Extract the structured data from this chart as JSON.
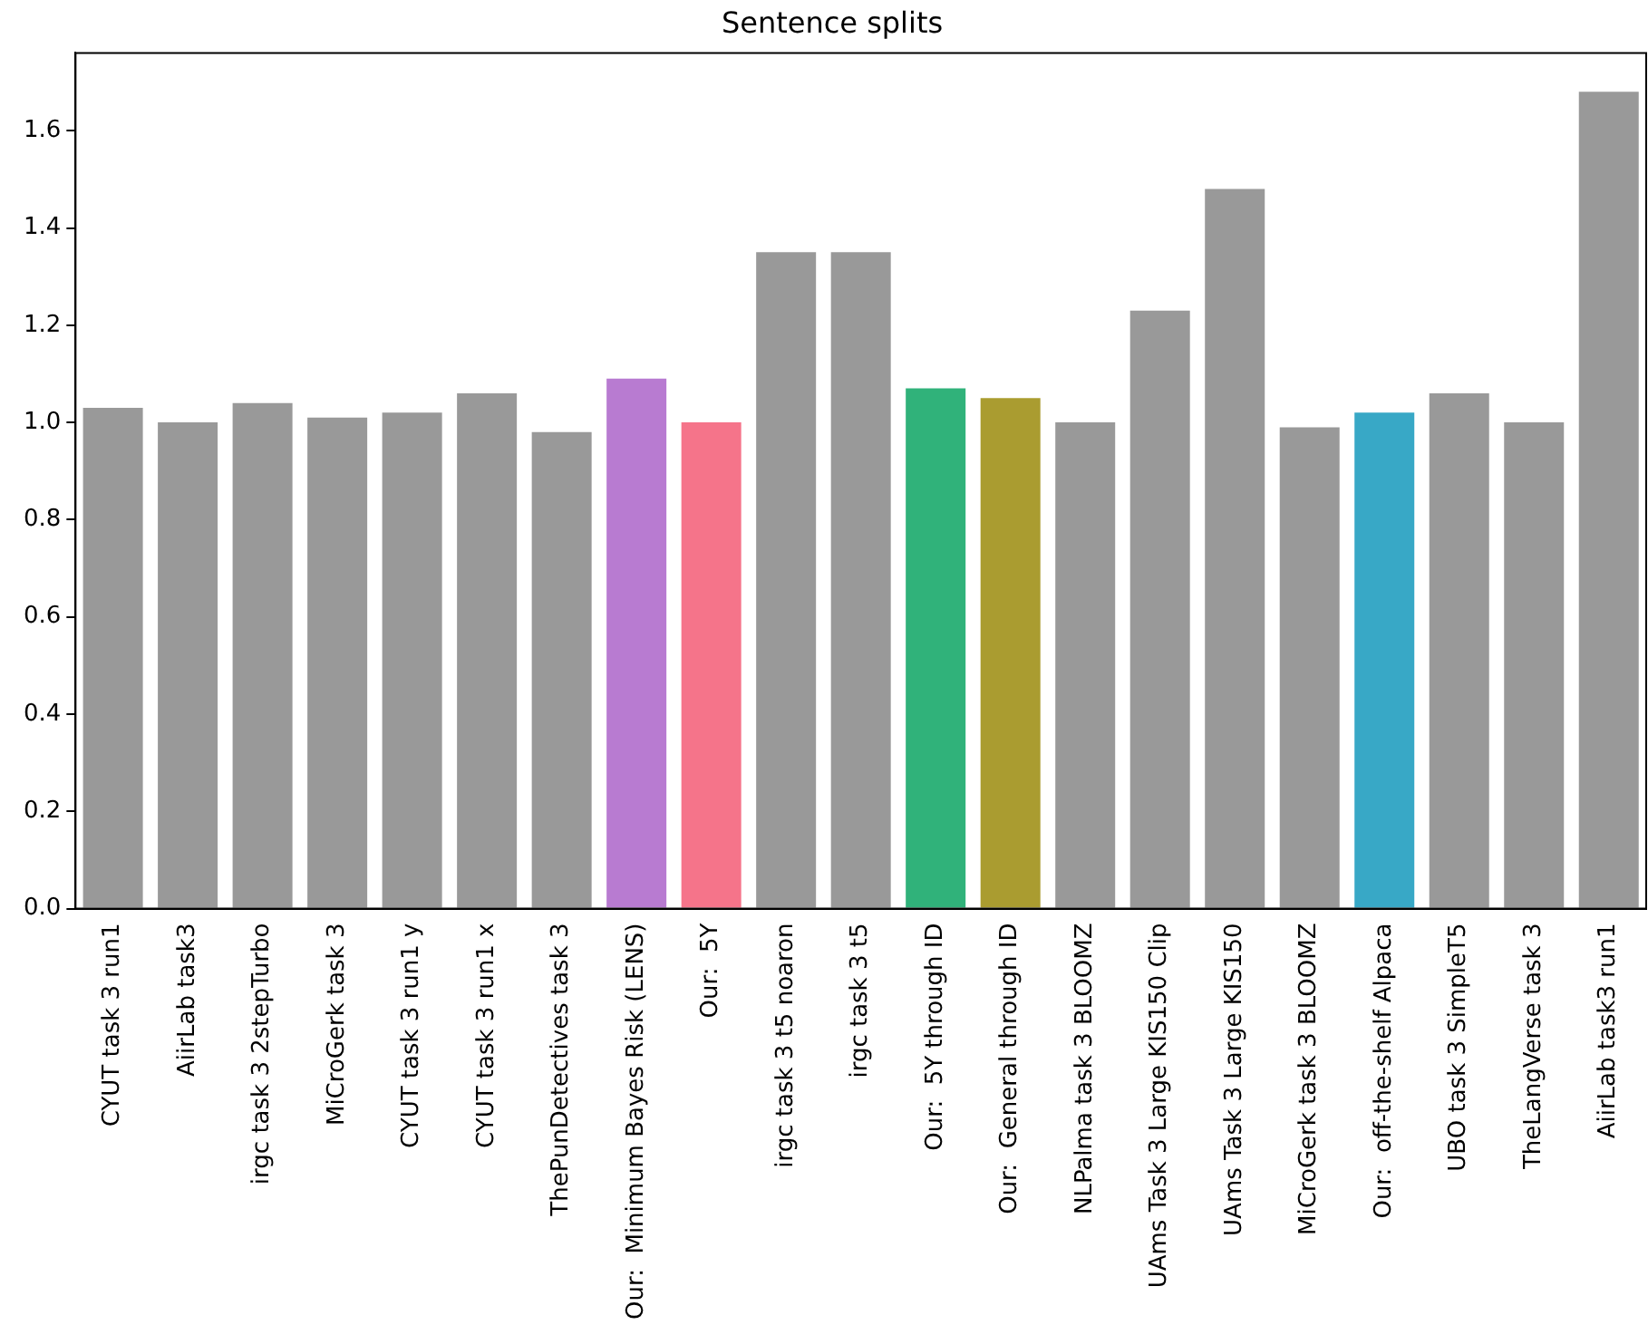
{
  "chart_data": {
    "type": "bar",
    "title": "Sentence splits",
    "categories": [
      "CYUT task 3 run1",
      "AiirLab task3",
      "irgc task 3 2stepTurbo",
      "MiCroGerk task 3",
      "CYUT task 3 run1 y",
      "CYUT task 3 run1 x",
      "ThePunDetectives task 3",
      "Our:  Minimum Bayes Risk (LENS)",
      "Our:  5Y",
      "irgc task 3 t5 noaron",
      "irgc task 3 t5",
      "Our:  5Y through ID",
      "Our:  General through ID",
      "NLPalma task 3 BLOOMZ",
      "UAms Task 3 Large KIS150 Clip",
      "UAms Task 3 Large KIS150",
      "MiCroGerk task 3 BLOOMZ",
      "Our:  off-the-shelf Alpaca",
      "UBO task 3 SimpleT5",
      "TheLangVerse task 3",
      "AiirLab task3 run1"
    ],
    "values": [
      1.03,
      1.0,
      1.04,
      1.01,
      1.02,
      1.06,
      0.98,
      1.09,
      1.0,
      1.35,
      1.35,
      1.07,
      1.05,
      1.0,
      1.23,
      1.48,
      0.99,
      1.02,
      1.06,
      1.0,
      1.68
    ],
    "colors": [
      "#999999",
      "#999999",
      "#999999",
      "#999999",
      "#999999",
      "#999999",
      "#999999",
      "#b87bd1",
      "#f5748a",
      "#999999",
      "#999999",
      "#30b27a",
      "#aa9c30",
      "#999999",
      "#999999",
      "#999999",
      "#999999",
      "#38a8c6",
      "#999999",
      "#999999",
      "#999999"
    ],
    "ylim": [
      0,
      1.76
    ],
    "yticks": [
      {
        "value": 0,
        "label": "0.0"
      },
      {
        "value": 0.2,
        "label": "0.2"
      },
      {
        "value": 0.4,
        "label": "0.4"
      },
      {
        "value": 0.6,
        "label": "0.6"
      },
      {
        "value": 0.8,
        "label": "0.8"
      },
      {
        "value": 1.0,
        "label": "1.0"
      },
      {
        "value": 1.2,
        "label": "1.2"
      },
      {
        "value": 1.4,
        "label": "1.4"
      },
      {
        "value": 1.6,
        "label": "1.6"
      }
    ],
    "grid": false,
    "legend": false
  }
}
